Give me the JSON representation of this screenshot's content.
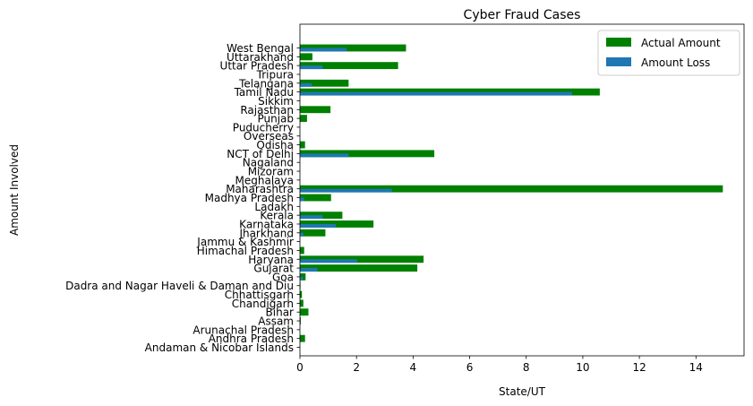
{
  "chart_data": {
    "type": "bar",
    "orientation": "horizontal",
    "title": "Cyber Fraud Cases",
    "xlabel": "State/UT",
    "ylabel": "Amount Involved",
    "xlim": [
      0,
      15.7
    ],
    "xticks": [
      0,
      2,
      4,
      6,
      8,
      10,
      12,
      14
    ],
    "grid": false,
    "legend_position": "top-right",
    "categories": [
      "Andaman & Nicobar Islands",
      "Andhra Pradesh",
      "Arunachal Pradesh",
      "Assam",
      "Bihar",
      "Chandigarh",
      "Chhattisgarh",
      "Dadra and Nagar Haveli & Daman and Diu",
      "Goa",
      "Gujarat",
      "Haryana",
      "Himachal Pradesh",
      "Jammu & Kashmir",
      "Jharkhand",
      "Karnataka",
      "Kerala",
      "Ladakh",
      "Madhya Pradesh",
      "Maharashtra",
      "Meghalaya",
      "Mizoram",
      "Nagaland",
      "NCT of Delhi",
      "Odisha",
      "Overseas",
      "Puducherry",
      "Punjab",
      "Rajasthan",
      "Sikkim",
      "Tamil Nadu",
      "Telangana",
      "Tripura",
      "Uttar Pradesh",
      "Uttarakhand",
      "West Bengal"
    ],
    "series": [
      {
        "name": "Actual Amount",
        "color": "#008000",
        "values": [
          0,
          0.18,
          0,
          0.03,
          0.3,
          0.12,
          0.07,
          0.02,
          0.2,
          4.15,
          4.37,
          0.15,
          0,
          0.9,
          2.6,
          1.5,
          0,
          1.1,
          14.95,
          0,
          0,
          0,
          4.75,
          0.18,
          0,
          0,
          0.25,
          1.08,
          0,
          10.6,
          1.72,
          0,
          3.47,
          0.44,
          3.75
        ]
      },
      {
        "name": "Amount Loss",
        "color": "#1f77b4",
        "values": [
          0,
          0,
          0,
          0.02,
          0,
          0,
          0,
          0,
          0.1,
          0.62,
          2.02,
          0,
          0,
          0.12,
          1.27,
          0.8,
          0,
          0.15,
          3.25,
          0,
          0,
          0,
          1.72,
          0,
          0,
          0,
          0,
          0,
          0,
          9.62,
          0.42,
          0,
          0.8,
          0,
          1.65
        ]
      }
    ]
  }
}
